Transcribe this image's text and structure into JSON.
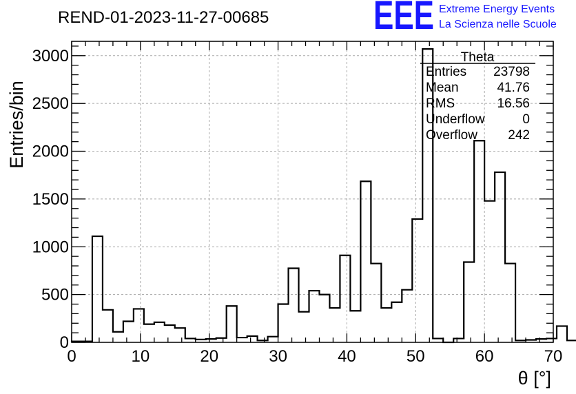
{
  "title": "REND-01-2023-11-27-00685",
  "logo": {
    "mark": "EEE",
    "line1": "Extreme Energy Events",
    "line2": "La Scienza nelle Scuole",
    "color": "#1717ff"
  },
  "stats": {
    "name": "Theta",
    "rows": [
      {
        "label": "Entries",
        "value": "23798"
      },
      {
        "label": "Mean",
        "value": "41.76"
      },
      {
        "label": "RMS",
        "value": "16.56"
      },
      {
        "label": "Underflow",
        "value": "0"
      },
      {
        "label": "Overflow",
        "value": "242"
      }
    ]
  },
  "chart_data": {
    "type": "bar",
    "histogram": true,
    "xlabel": "θ [°]",
    "ylabel": "Entries/bin",
    "xlim": [
      0,
      70
    ],
    "ylim": [
      0,
      3150
    ],
    "bin_width": 1.5,
    "grid": true,
    "x_ticks": [
      0,
      10,
      20,
      30,
      40,
      50,
      60,
      70
    ],
    "y_ticks": [
      0,
      500,
      1000,
      1500,
      2000,
      2500,
      3000
    ],
    "values": [
      10,
      10,
      1110,
      340,
      110,
      220,
      350,
      190,
      210,
      180,
      150,
      40,
      30,
      35,
      45,
      380,
      50,
      65,
      20,
      60,
      400,
      775,
      320,
      540,
      500,
      360,
      910,
      330,
      1685,
      825,
      360,
      420,
      550,
      1290,
      3070,
      40,
      0,
      40,
      840,
      2110,
      1480,
      1780,
      825,
      20,
      25,
      35,
      40,
      170,
      20,
      20
    ]
  }
}
